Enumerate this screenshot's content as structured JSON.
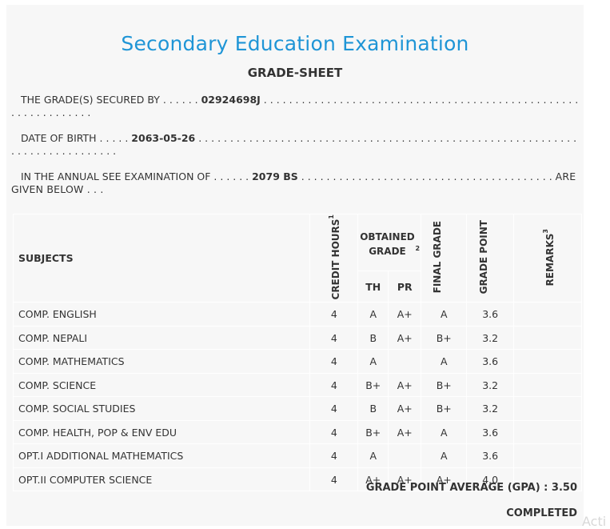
{
  "header": {
    "title": "Secondary Education Examination",
    "subtitle": "GRADE-SHEET"
  },
  "info": {
    "secured_by_label": "THE GRADE(S) SECURED BY",
    "symbol_no": "02924698J",
    "dob_label": "DATE OF BIRTH",
    "dob": "2063-05-26",
    "exam_label": "IN THE ANNUAL SEE EXAMINATION OF",
    "exam_year": "2079 BS",
    "exam_suffix": "ARE GIVEN BELOW . . ."
  },
  "table": {
    "headers": {
      "subjects": "SUBJECTS",
      "credit_hours": "CREDIT HOURS",
      "credit_hours_sup": "1",
      "obtained_grade": "OBTAINED GRADE",
      "obtained_grade_sup": "2",
      "th": "TH",
      "pr": "PR",
      "final_grade": "FINAL GRADE",
      "grade_point": "GRADE POINT",
      "remarks": "REMARKS",
      "remarks_sup": "3"
    },
    "rows": [
      {
        "subject": "COMP. ENGLISH",
        "credit": "4",
        "th": "A",
        "pr": "A+",
        "final": "A",
        "gp": "3.6",
        "remarks": ""
      },
      {
        "subject": "COMP. NEPALI",
        "credit": "4",
        "th": "B",
        "pr": "A+",
        "final": "B+",
        "gp": "3.2",
        "remarks": ""
      },
      {
        "subject": "COMP. MATHEMATICS",
        "credit": "4",
        "th": "A",
        "pr": "",
        "final": "A",
        "gp": "3.6",
        "remarks": ""
      },
      {
        "subject": "COMP. SCIENCE",
        "credit": "4",
        "th": "B+",
        "pr": "A+",
        "final": "B+",
        "gp": "3.2",
        "remarks": ""
      },
      {
        "subject": "COMP. SOCIAL STUDIES",
        "credit": "4",
        "th": "B",
        "pr": "A+",
        "final": "B+",
        "gp": "3.2",
        "remarks": ""
      },
      {
        "subject": "COMP. HEALTH, POP & ENV EDU",
        "credit": "4",
        "th": "B+",
        "pr": "A+",
        "final": "A",
        "gp": "3.6",
        "remarks": ""
      },
      {
        "subject": "OPT.I ADDITIONAL MATHEMATICS",
        "credit": "4",
        "th": "A",
        "pr": "",
        "final": "A",
        "gp": "3.6",
        "remarks": ""
      },
      {
        "subject": "OPT.II COMPUTER SCIENCE",
        "credit": "4",
        "th": "A+",
        "pr": "A+",
        "final": "A+",
        "gp": "4.0",
        "remarks": ""
      }
    ]
  },
  "summary": {
    "gpa_label": "GRADE POINT AVERAGE (GPA) :",
    "gpa_value": "3.50",
    "status": "COMPLETED"
  },
  "watermark": "Acti"
}
